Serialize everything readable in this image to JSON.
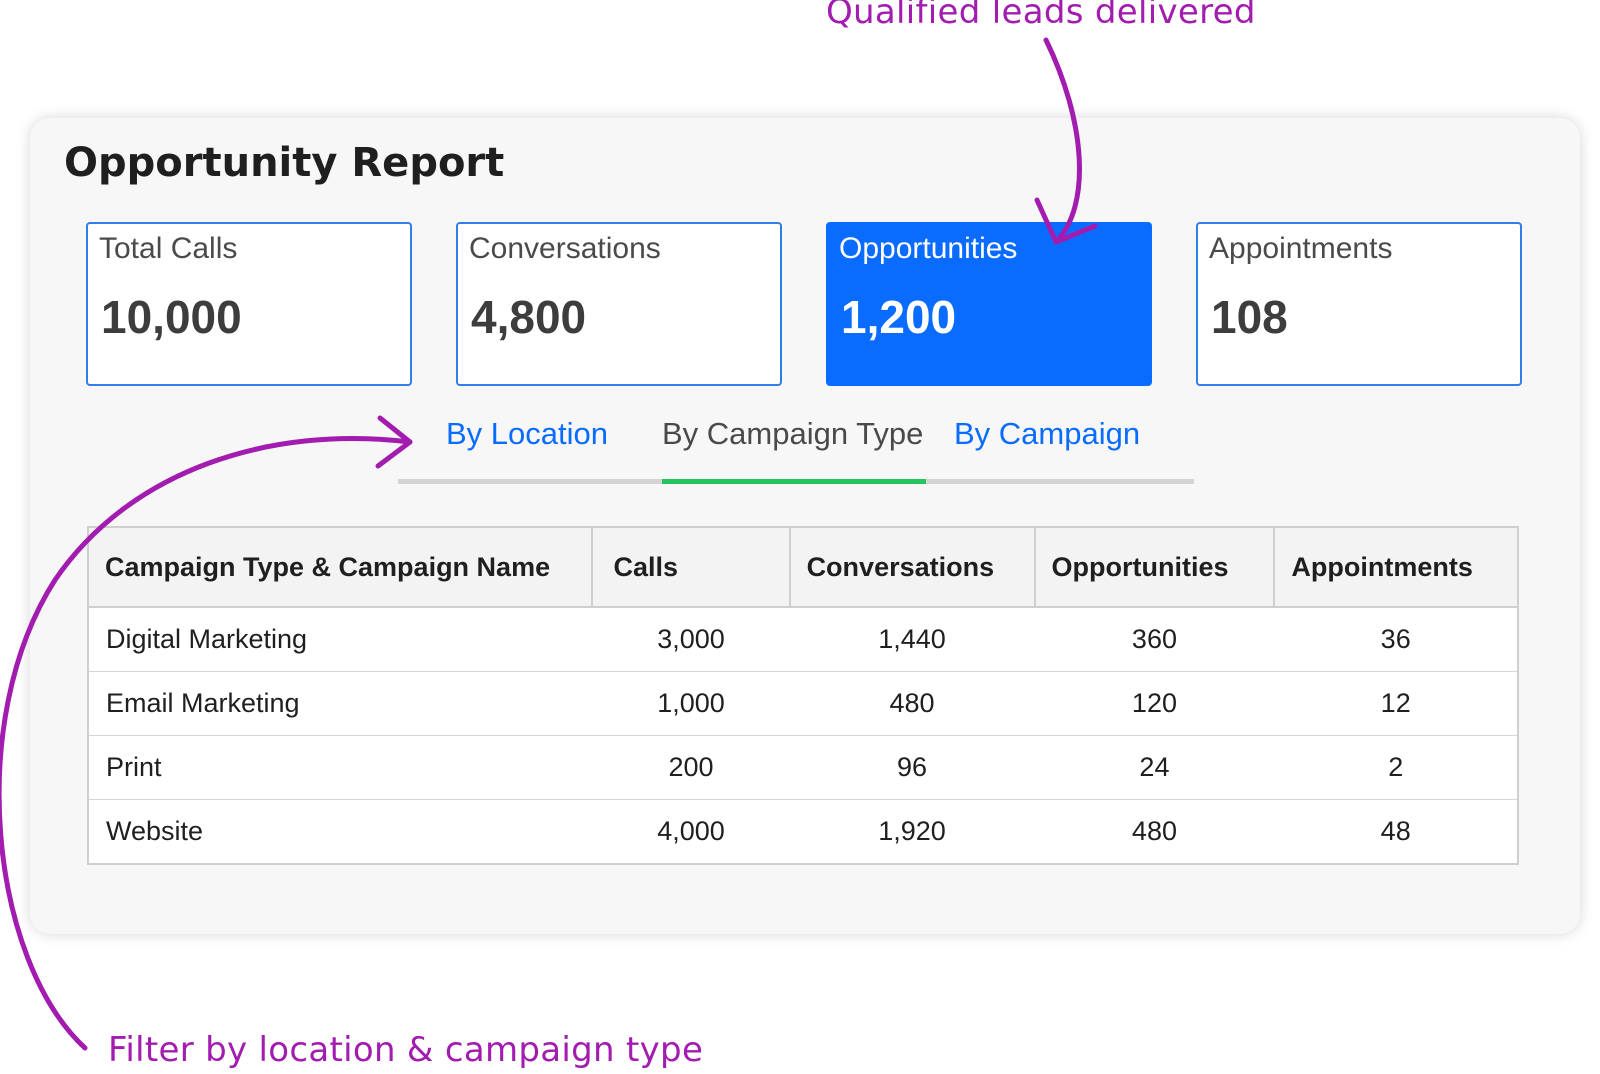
{
  "annotations": {
    "top": "Qualified leads delivered",
    "bottom": "Filter by location & campaign type"
  },
  "report": {
    "title": "Opportunity Report"
  },
  "stats": [
    {
      "label": "Total Calls",
      "value": "10,000",
      "active": false
    },
    {
      "label": "Conversations",
      "value": "4,800",
      "active": false
    },
    {
      "label": "Opportunities",
      "value": "1,200",
      "active": true
    },
    {
      "label": "Appointments",
      "value": "108",
      "active": false
    }
  ],
  "tabs": [
    {
      "label": "By Location",
      "active": false
    },
    {
      "label": "By Campaign Type",
      "active": true
    },
    {
      "label": "By Campaign",
      "active": false
    }
  ],
  "table": {
    "headers": [
      "Campaign Type & Campaign Name",
      "Calls",
      "Conversations",
      "Opportunities",
      "Appointments"
    ],
    "rows": [
      [
        "Digital Marketing",
        "3,000",
        "1,440",
        "360",
        "36"
      ],
      [
        "Email Marketing",
        "1,000",
        "480",
        "120",
        "12"
      ],
      [
        "Print",
        "200",
        "96",
        "24",
        "2"
      ],
      [
        "Website",
        "4,000",
        "1,920",
        "480",
        "48"
      ]
    ]
  },
  "colors": {
    "accent_blue": "#0a6cff",
    "annotation_magenta": "#a21caf",
    "active_tab_green": "#22c55e"
  }
}
